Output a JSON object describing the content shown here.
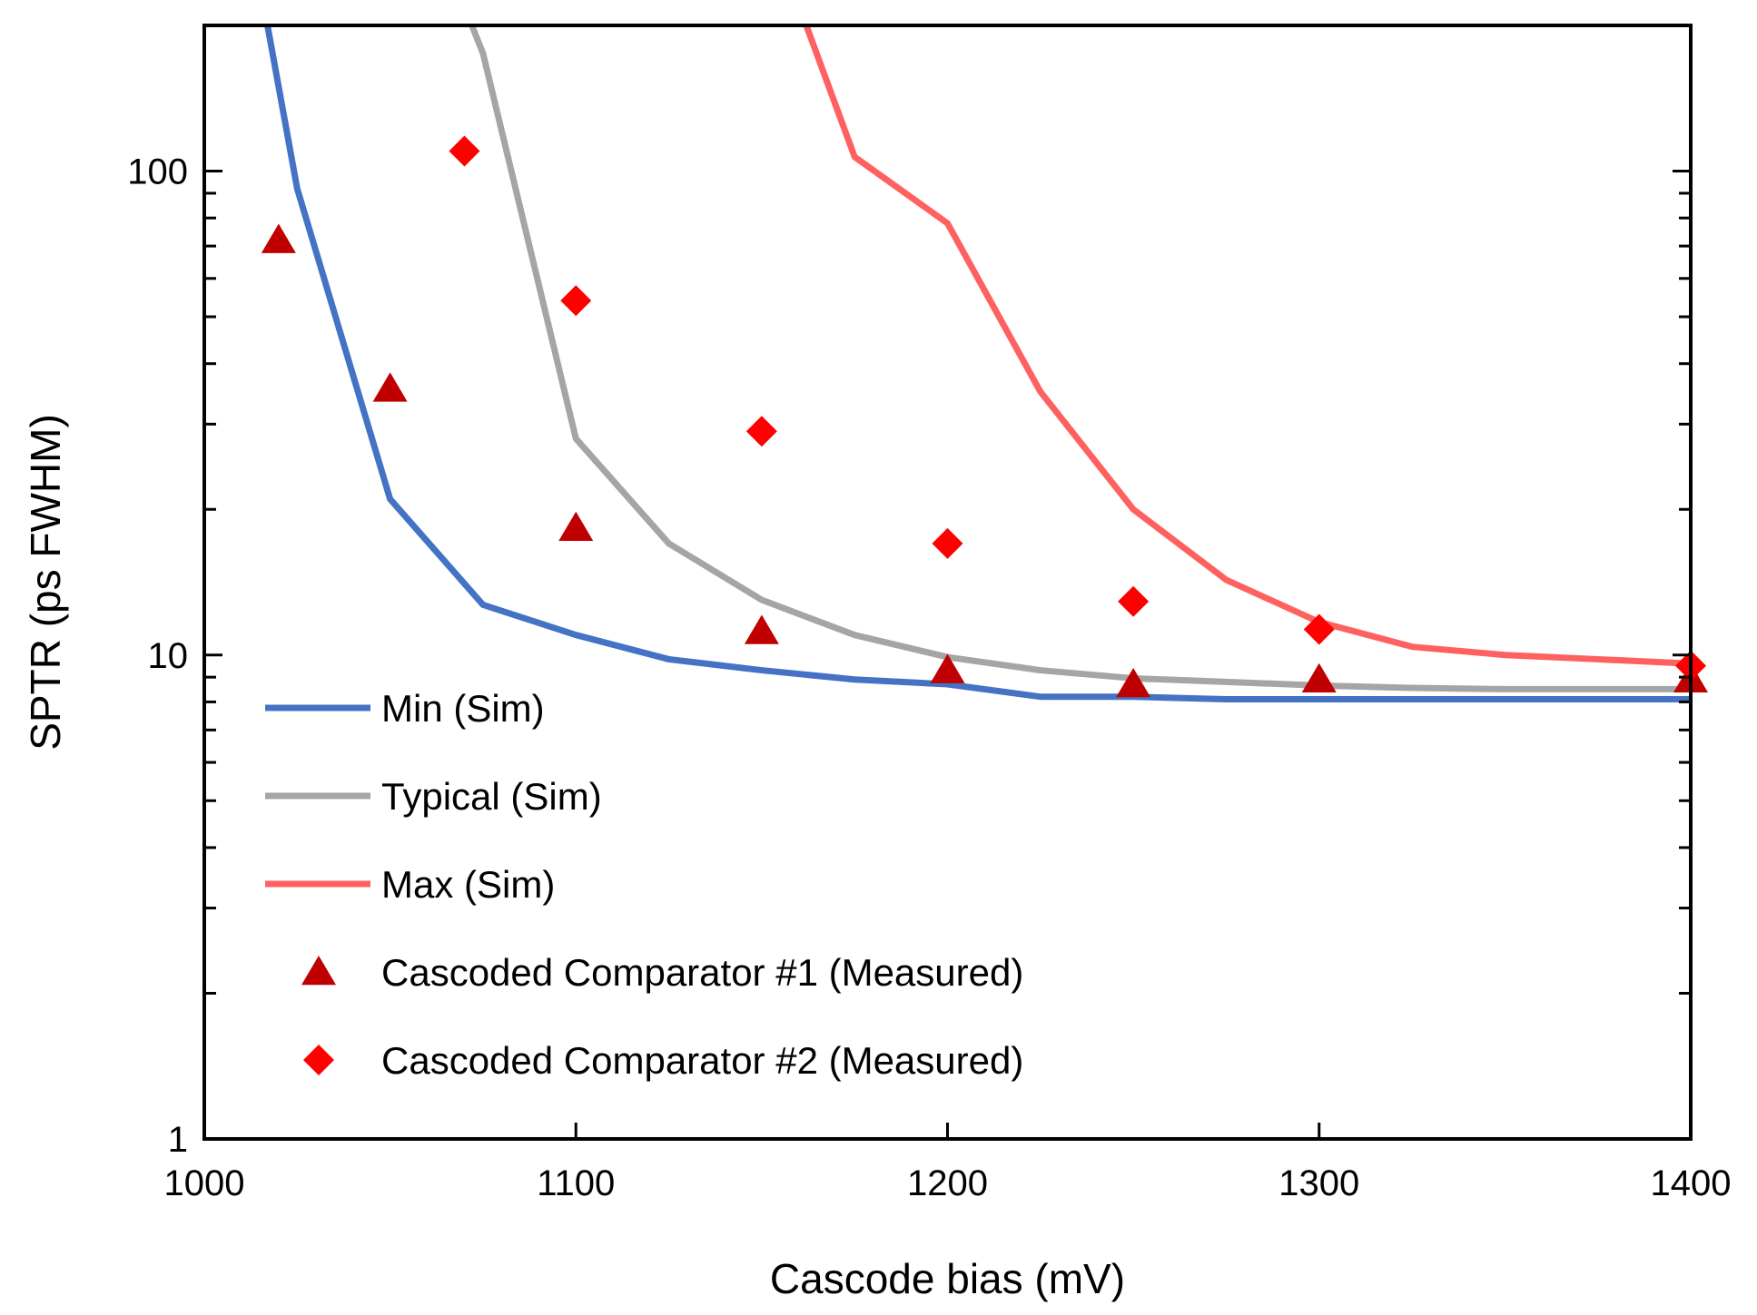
{
  "chart_data": {
    "type": "line",
    "xlabel": "Cascode bias (mV)",
    "ylabel": "SPTR (ps FWHM)",
    "xlim": [
      1000,
      1400
    ],
    "ylim": [
      1,
      200
    ],
    "yscale": "log",
    "grid": false,
    "legend_position": "bottom-left",
    "x_ticks": [
      1000,
      1100,
      1200,
      1300,
      1400
    ],
    "x_tick_labels": [
      "1000",
      "1100",
      "1200",
      "1300",
      "1400"
    ],
    "y_ticks": [
      1,
      10,
      100
    ],
    "y_tick_labels": [
      "1",
      "10",
      "100"
    ],
    "series": [
      {
        "name": "Min (Sim)",
        "kind": "line",
        "color": "#4472C4",
        "x": [
          1017,
          1025,
          1050,
          1075,
          1100,
          1125,
          1150,
          1175,
          1200,
          1225,
          1250,
          1275,
          1300,
          1325,
          1350,
          1375,
          1400
        ],
        "y": [
          200,
          92,
          21,
          12.7,
          11.0,
          9.8,
          9.3,
          8.9,
          8.7,
          8.2,
          8.2,
          8.1,
          8.1,
          8.1,
          8.1,
          8.1,
          8.1
        ]
      },
      {
        "name": "Typical (Sim)",
        "kind": "line",
        "color": "#A5A5A5",
        "x": [
          1072,
          1075,
          1100,
          1125,
          1150,
          1175,
          1200,
          1225,
          1250,
          1275,
          1300,
          1325,
          1350,
          1375,
          1400
        ],
        "y": [
          200,
          175,
          28,
          17,
          13,
          11,
          9.9,
          9.3,
          8.95,
          8.8,
          8.65,
          8.55,
          8.5,
          8.5,
          8.5
        ]
      },
      {
        "name": "Max (Sim)",
        "kind": "line",
        "color": "#FF6161",
        "x": [
          1162,
          1175,
          1200,
          1225,
          1250,
          1275,
          1300,
          1325,
          1350,
          1375,
          1400
        ],
        "y": [
          200,
          107,
          78,
          35,
          20,
          14.3,
          11.7,
          10.4,
          10.0,
          9.8,
          9.6
        ]
      },
      {
        "name": "Cascoded Comparator #1 (Measured)",
        "kind": "scatter",
        "marker": "triangle",
        "color": "#C00000",
        "x": [
          1020,
          1050,
          1100,
          1150,
          1200,
          1250,
          1300,
          1400
        ],
        "y": [
          72,
          35.5,
          18.3,
          11.2,
          9.3,
          8.7,
          8.9,
          8.9
        ]
      },
      {
        "name": "Cascoded Comparator #2 (Measured)",
        "kind": "scatter",
        "marker": "diamond",
        "color": "#FF0000",
        "x": [
          1070,
          1100,
          1150,
          1200,
          1250,
          1300,
          1400
        ],
        "y": [
          110,
          54,
          29,
          17,
          12.9,
          11.3,
          9.5
        ]
      }
    ]
  }
}
